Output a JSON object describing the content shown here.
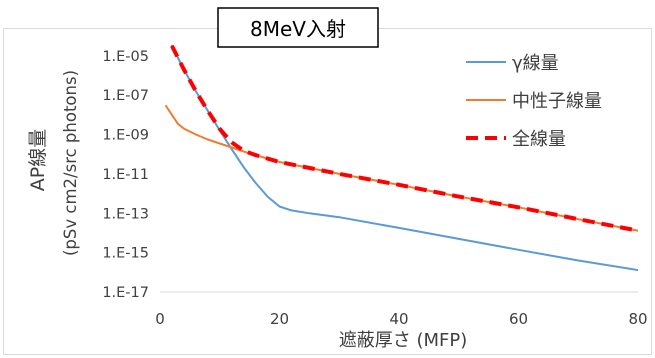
{
  "chart_data": {
    "type": "line",
    "title": "8MeV入射",
    "xlabel": "遮蔽厚さ (MFP)",
    "ylabel_line1": "AP線量",
    "ylabel_line2": "(pSv cm2/src photons)",
    "xlim": [
      0,
      80
    ],
    "ylim_log10": [
      -17,
      -4.3
    ],
    "y_scale": "log",
    "grid": false,
    "legend_position": "right",
    "x_ticks": [
      0,
      20,
      40,
      60,
      80
    ],
    "y_tick_labels": [
      "1.E-05",
      "1.E-07",
      "1.E-09",
      "1.E-11",
      "1.E-13",
      "1.E-15",
      "1.E-17"
    ],
    "y_tick_exponents": [
      -5,
      -7,
      -9,
      -11,
      -13,
      -15,
      -17
    ],
    "series": [
      {
        "name": "γ線量",
        "color": "#5B9BD5",
        "style": "solid",
        "x": [
          2,
          4,
          6,
          8,
          10,
          12,
          14,
          16,
          18,
          20,
          22,
          25,
          30,
          40,
          50,
          60,
          70,
          80
        ],
        "y": [
          3.2e-05,
          2e-06,
          1.6e-07,
          1.6e-08,
          1.6e-09,
          1.8e-10,
          2.2e-11,
          3.5e-12,
          7e-13,
          2.2e-13,
          1.4e-13,
          1e-13,
          6.3e-14,
          1.8e-14,
          5e-15,
          1.4e-15,
          4e-16,
          1.3e-16
        ]
      },
      {
        "name": "中性子線量",
        "color": "#ED7D31",
        "style": "solid",
        "x": [
          1,
          2,
          3,
          4,
          6,
          8,
          10,
          12,
          15,
          20,
          30,
          40,
          50,
          60,
          70,
          80
        ],
        "y": [
          2.8e-08,
          1e-08,
          3.5e-09,
          2e-09,
          1e-09,
          5.6e-10,
          3.5e-10,
          2.2e-10,
          1.1e-10,
          4e-11,
          1e-11,
          2.8e-12,
          7e-13,
          2e-13,
          5e-14,
          1.3e-14
        ]
      },
      {
        "name": "全線量",
        "color": "#FF0000",
        "style": "dashed",
        "x": [
          2,
          4,
          6,
          8,
          10,
          12,
          14,
          16,
          20,
          30,
          40,
          50,
          60,
          70,
          80
        ],
        "y": [
          3.2e-05,
          2e-06,
          1.6e-07,
          1.6e-08,
          1.9e-09,
          4e-10,
          1.5e-10,
          9e-11,
          4e-11,
          1e-11,
          2.8e-12,
          7e-13,
          2e-13,
          5e-14,
          1.3e-14
        ]
      }
    ]
  }
}
